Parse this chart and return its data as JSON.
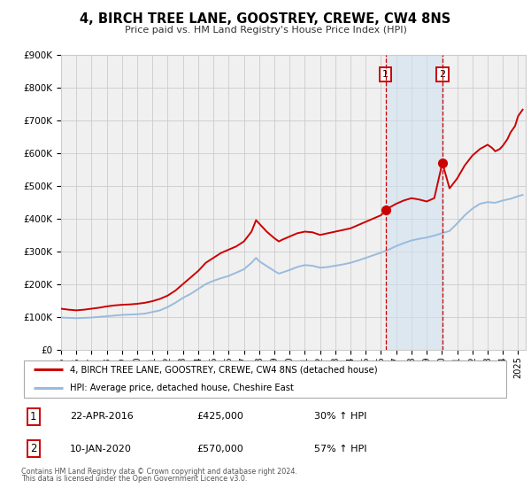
{
  "title": "4, BIRCH TREE LANE, GOOSTREY, CREWE, CW4 8NS",
  "subtitle": "Price paid vs. HM Land Registry's House Price Index (HPI)",
  "ylim": [
    0,
    900000
  ],
  "xlim_start": 1995.0,
  "xlim_end": 2025.5,
  "yticks": [
    0,
    100000,
    200000,
    300000,
    400000,
    500000,
    600000,
    700000,
    800000,
    900000
  ],
  "ytick_labels": [
    "£0",
    "£100K",
    "£200K",
    "£300K",
    "£400K",
    "£500K",
    "£600K",
    "£700K",
    "£800K",
    "£900K"
  ],
  "xticks": [
    1995,
    1996,
    1997,
    1998,
    1999,
    2000,
    2001,
    2002,
    2003,
    2004,
    2005,
    2006,
    2007,
    2008,
    2009,
    2010,
    2011,
    2012,
    2013,
    2014,
    2015,
    2016,
    2017,
    2018,
    2019,
    2020,
    2021,
    2022,
    2023,
    2024,
    2025
  ],
  "sale1_x": 2016.31,
  "sale1_y": 425000,
  "sale1_label": "1",
  "sale2_x": 2020.03,
  "sale2_y": 570000,
  "sale2_label": "2",
  "vline1_x": 2016.31,
  "vline2_x": 2020.03,
  "shaded_start": 2016.31,
  "shaded_end": 2020.03,
  "red_line_color": "#cc0000",
  "blue_line_color": "#99bbdd",
  "bg_color": "#f0f0f0",
  "grid_color": "#cccccc",
  "legend_label_red": "4, BIRCH TREE LANE, GOOSTREY, CREWE, CW4 8NS (detached house)",
  "legend_label_blue": "HPI: Average price, detached house, Cheshire East",
  "annotation1_date": "22-APR-2016",
  "annotation1_price": "£425,000",
  "annotation1_hpi": "30% ↑ HPI",
  "annotation2_date": "10-JAN-2020",
  "annotation2_price": "£570,000",
  "annotation2_hpi": "57% ↑ HPI",
  "footer1": "Contains HM Land Registry data © Crown copyright and database right 2024.",
  "footer2": "This data is licensed under the Open Government Licence v3.0.",
  "red_hpi_data": [
    [
      1995.0,
      125000
    ],
    [
      1995.5,
      122000
    ],
    [
      1996.0,
      120000
    ],
    [
      1996.5,
      122000
    ],
    [
      1997.0,
      125000
    ],
    [
      1997.5,
      128000
    ],
    [
      1998.0,
      132000
    ],
    [
      1998.5,
      135000
    ],
    [
      1999.0,
      137000
    ],
    [
      1999.5,
      138000
    ],
    [
      2000.0,
      140000
    ],
    [
      2000.5,
      143000
    ],
    [
      2001.0,
      148000
    ],
    [
      2001.5,
      155000
    ],
    [
      2002.0,
      165000
    ],
    [
      2002.5,
      180000
    ],
    [
      2003.0,
      200000
    ],
    [
      2003.5,
      220000
    ],
    [
      2004.0,
      240000
    ],
    [
      2004.5,
      265000
    ],
    [
      2005.0,
      280000
    ],
    [
      2005.5,
      295000
    ],
    [
      2006.0,
      305000
    ],
    [
      2006.5,
      315000
    ],
    [
      2007.0,
      330000
    ],
    [
      2007.5,
      360000
    ],
    [
      2007.8,
      395000
    ],
    [
      2008.0,
      385000
    ],
    [
      2008.5,
      360000
    ],
    [
      2009.0,
      340000
    ],
    [
      2009.3,
      330000
    ],
    [
      2009.5,
      335000
    ],
    [
      2010.0,
      345000
    ],
    [
      2010.5,
      355000
    ],
    [
      2011.0,
      360000
    ],
    [
      2011.5,
      358000
    ],
    [
      2012.0,
      350000
    ],
    [
      2012.5,
      355000
    ],
    [
      2013.0,
      360000
    ],
    [
      2013.5,
      365000
    ],
    [
      2014.0,
      370000
    ],
    [
      2014.5,
      380000
    ],
    [
      2015.0,
      390000
    ],
    [
      2015.5,
      400000
    ],
    [
      2016.0,
      410000
    ],
    [
      2016.31,
      425000
    ],
    [
      2016.5,
      432000
    ],
    [
      2017.0,
      445000
    ],
    [
      2017.5,
      455000
    ],
    [
      2018.0,
      462000
    ],
    [
      2018.5,
      458000
    ],
    [
      2019.0,
      452000
    ],
    [
      2019.5,
      462000
    ],
    [
      2020.03,
      570000
    ],
    [
      2020.5,
      492000
    ],
    [
      2021.0,
      522000
    ],
    [
      2021.5,
      562000
    ],
    [
      2022.0,
      592000
    ],
    [
      2022.5,
      612000
    ],
    [
      2023.0,
      625000
    ],
    [
      2023.3,
      615000
    ],
    [
      2023.5,
      605000
    ],
    [
      2023.8,
      612000
    ],
    [
      2024.0,
      622000
    ],
    [
      2024.3,
      642000
    ],
    [
      2024.5,
      662000
    ],
    [
      2024.8,
      682000
    ],
    [
      2025.0,
      712000
    ],
    [
      2025.3,
      732000
    ]
  ],
  "blue_hpi_data": [
    [
      1995.0,
      98000
    ],
    [
      1995.5,
      97000
    ],
    [
      1996.0,
      96000
    ],
    [
      1996.5,
      97000
    ],
    [
      1997.0,
      98000
    ],
    [
      1997.5,
      100000
    ],
    [
      1998.0,
      102000
    ],
    [
      1998.5,
      104000
    ],
    [
      1999.0,
      106000
    ],
    [
      1999.5,
      107000
    ],
    [
      2000.0,
      108000
    ],
    [
      2000.5,
      110000
    ],
    [
      2001.0,
      115000
    ],
    [
      2001.5,
      120000
    ],
    [
      2002.0,
      130000
    ],
    [
      2002.5,
      143000
    ],
    [
      2003.0,
      158000
    ],
    [
      2003.5,
      170000
    ],
    [
      2004.0,
      185000
    ],
    [
      2004.5,
      200000
    ],
    [
      2005.0,
      210000
    ],
    [
      2005.5,
      218000
    ],
    [
      2006.0,
      225000
    ],
    [
      2006.5,
      235000
    ],
    [
      2007.0,
      245000
    ],
    [
      2007.5,
      265000
    ],
    [
      2007.8,
      280000
    ],
    [
      2008.0,
      270000
    ],
    [
      2008.5,
      255000
    ],
    [
      2009.0,
      240000
    ],
    [
      2009.3,
      232000
    ],
    [
      2009.5,
      235000
    ],
    [
      2010.0,
      243000
    ],
    [
      2010.5,
      252000
    ],
    [
      2011.0,
      258000
    ],
    [
      2011.5,
      256000
    ],
    [
      2012.0,
      250000
    ],
    [
      2012.5,
      252000
    ],
    [
      2013.0,
      256000
    ],
    [
      2013.5,
      260000
    ],
    [
      2014.0,
      265000
    ],
    [
      2014.5,
      272000
    ],
    [
      2015.0,
      280000
    ],
    [
      2015.5,
      288000
    ],
    [
      2016.0,
      296000
    ],
    [
      2016.5,
      305000
    ],
    [
      2017.0,
      316000
    ],
    [
      2017.5,
      325000
    ],
    [
      2018.0,
      333000
    ],
    [
      2018.5,
      338000
    ],
    [
      2019.0,
      342000
    ],
    [
      2019.5,
      348000
    ],
    [
      2020.0,
      355000
    ],
    [
      2020.5,
      362000
    ],
    [
      2021.0,
      385000
    ],
    [
      2021.5,
      410000
    ],
    [
      2022.0,
      430000
    ],
    [
      2022.5,
      445000
    ],
    [
      2023.0,
      450000
    ],
    [
      2023.5,
      448000
    ],
    [
      2024.0,
      455000
    ],
    [
      2024.5,
      460000
    ],
    [
      2025.0,
      468000
    ],
    [
      2025.3,
      472000
    ]
  ]
}
